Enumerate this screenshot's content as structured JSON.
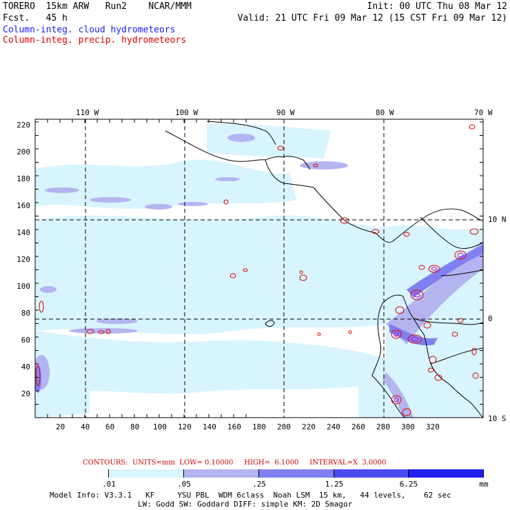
{
  "header": {
    "model_line": "TORERO  15km ARW   Run2    NCAR/MMM",
    "fcst_line": "Fcst.   45 h",
    "init_line": "Init: 00 UTC Thu 08 Mar 12",
    "valid_line": "Valid: 21 UTC Fri 09 Mar 12 (15 CST Fri 09 Mar 12)",
    "field1": "Column-integ. cloud hydrometeors",
    "field2": "Column-integ. precip. hydrometeors",
    "field1_color": "#1a1aff",
    "field2_color": "#e00000"
  },
  "map": {
    "lon_labels": [
      "110 W",
      "100 W",
      "90 W",
      "80 W",
      "70 W"
    ],
    "lat_labels": [
      "10 N",
      "0",
      "10 S"
    ],
    "y_ticks": [
      "220",
      "200",
      "180",
      "160",
      "140",
      "120",
      "100",
      "80",
      "60",
      "40",
      "20"
    ],
    "x_ticks": [
      "20",
      "40",
      "60",
      "80",
      "100",
      "120",
      "140",
      "160",
      "180",
      "200",
      "220",
      "240",
      "260",
      "280",
      "300",
      "320"
    ]
  },
  "contours": {
    "label": "CONTOURS:  UNITS=mm  LOW= 0.10000     HIGH=  6.1000     INTERVAL=X  3.0000",
    "color": "#cc0000"
  },
  "colorbar": {
    "labels": [
      ".01",
      ".05",
      ".25",
      "1.25",
      "6.25"
    ],
    "unit": "mm",
    "colors": [
      "#ffffff",
      "#d8f4ff",
      "#b4b4f0",
      "#8080f0",
      "#4a4aef",
      "#2020f0"
    ]
  },
  "footer": {
    "line1": "Model Info: V3.3.1   KF     YSU PBL  WDM 6class  Noah LSM  15 km,   44 levels,    62 sec",
    "line2": "LW: Godd SW: Goddard DIFF: simple KM: 2D Smagor"
  }
}
